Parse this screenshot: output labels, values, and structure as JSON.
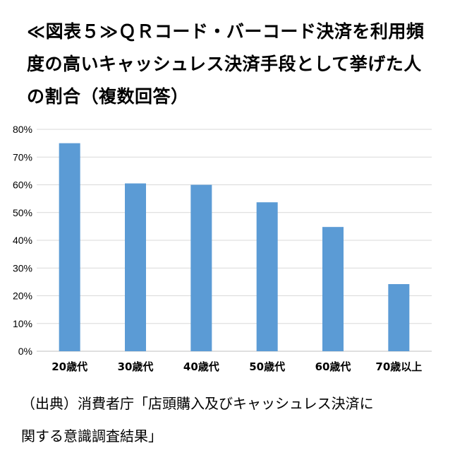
{
  "title_lines": [
    "≪図表５≫ＱＲコード・バーコード決済を利用頻",
    "度の高いキャッシュレス決済手段として挙げた人",
    "の割合（複数回答）"
  ],
  "source_lines": [
    "（出典）消費者庁「店頭購入及びキャッシュレス決済に",
    "関する意識調査結果」"
  ],
  "colors": {
    "bar": "#5b9bd5",
    "grid": "#d9d9d9",
    "axis": "#bfbfbf"
  },
  "chart_data": {
    "type": "bar",
    "title": "",
    "xlabel": "",
    "ylabel": "",
    "categories": [
      "20歳代",
      "30歳代",
      "40歳代",
      "50歳代",
      "60歳代",
      "70歳以上"
    ],
    "values": [
      75,
      60.5,
      60,
      53.7,
      44.8,
      24.2
    ],
    "unit": "%",
    "ylim": [
      0,
      80
    ],
    "yticks": [
      "0%",
      "10%",
      "20%",
      "30%",
      "40%",
      "50%",
      "60%",
      "70%",
      "80%"
    ],
    "grid": true,
    "legend": "none"
  }
}
